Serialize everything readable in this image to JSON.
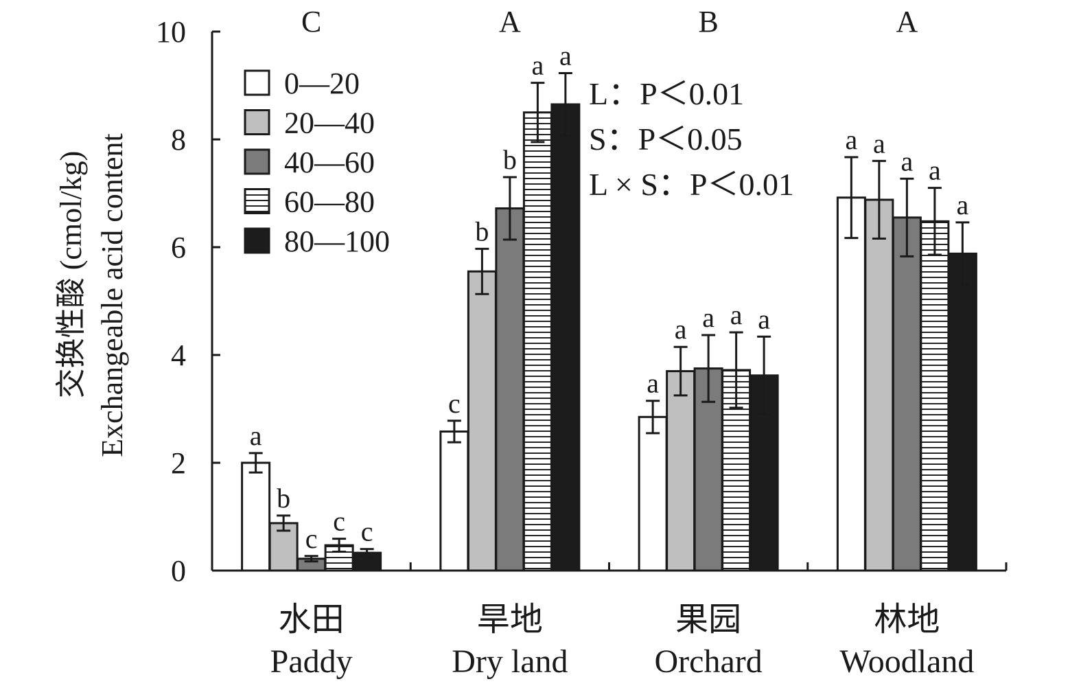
{
  "chart_data": {
    "type": "bar",
    "ylabel_zh": "交换性酸 (cmol/kg)",
    "ylabel_en": "Exchangeable acid content",
    "ylim": [
      0,
      10
    ],
    "yticks": [
      0,
      2,
      4,
      6,
      8,
      10
    ],
    "categories": [
      {
        "zh": "水田",
        "en": "Paddy",
        "group_letter": "C"
      },
      {
        "zh": "旱地",
        "en": "Dry land",
        "group_letter": "A"
      },
      {
        "zh": "果园",
        "en": "Orchard",
        "group_letter": "B"
      },
      {
        "zh": "林地",
        "en": "Woodland",
        "group_letter": "A"
      }
    ],
    "series": [
      {
        "name": "0—20",
        "fill": "#ffffff",
        "pattern": "none",
        "values": [
          2.0,
          2.58,
          2.85,
          6.92
        ],
        "errors": [
          0.18,
          0.2,
          0.3,
          0.75
        ],
        "letters": [
          "a",
          "c",
          "a",
          "a"
        ]
      },
      {
        "name": "20—40",
        "fill": "#bfbfbf",
        "pattern": "none",
        "values": [
          0.88,
          5.55,
          3.7,
          6.88
        ],
        "errors": [
          0.14,
          0.42,
          0.45,
          0.72
        ],
        "letters": [
          "b",
          "b",
          "a",
          "a"
        ]
      },
      {
        "name": "40—60",
        "fill": "#7b7b7b",
        "pattern": "none",
        "values": [
          0.22,
          6.72,
          3.75,
          6.55
        ],
        "errors": [
          0.05,
          0.58,
          0.62,
          0.72
        ],
        "letters": [
          "c",
          "b",
          "a",
          "a"
        ]
      },
      {
        "name": "60—80",
        "fill": "#ffffff",
        "pattern": "hlines",
        "values": [
          0.47,
          8.5,
          3.72,
          6.48
        ],
        "errors": [
          0.12,
          0.55,
          0.7,
          0.62
        ],
        "letters": [
          "c",
          "a",
          "a",
          "a"
        ]
      },
      {
        "name": "80—100",
        "fill": "#1c1c1c",
        "pattern": "none",
        "values": [
          0.33,
          8.65,
          3.62,
          5.88
        ],
        "errors": [
          0.07,
          0.58,
          0.72,
          0.58
        ],
        "letters": [
          "c",
          "a",
          "a",
          "a"
        ]
      }
    ],
    "stats": [
      "L：P＜0.01",
      "S：P＜0.05",
      "L × S：P＜0.01"
    ],
    "legend_position": "top-left"
  }
}
